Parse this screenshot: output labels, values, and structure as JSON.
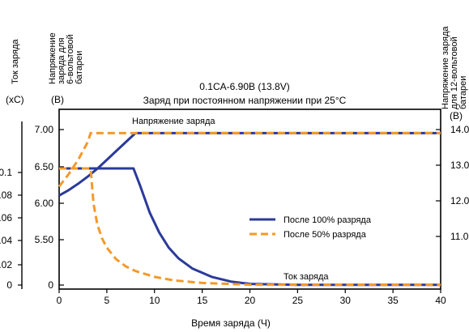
{
  "chart_data": {
    "type": "line",
    "title": "0.1CA-6.90В (13.8V)",
    "subtitle": "Заряд при постоянном напряжении при 25°C",
    "xlabel": "Время заряда (Ч)",
    "x_ticks": [
      "0",
      "5",
      "10",
      "15",
      "20",
      "25",
      "30",
      "35",
      "40"
    ],
    "xlim": [
      0,
      40
    ],
    "axes": {
      "current": {
        "label": "Ток заряда",
        "unit": "(xC)",
        "ticks": [
          "0",
          "0.02",
          "0.04",
          "0.06",
          "0.08",
          "0.1"
        ],
        "ylim": [
          0,
          0.1
        ]
      },
      "voltage_6v": {
        "label": "Напряжение заряда для 6-вольтовой батареи",
        "unit": "(В)",
        "ticks": [
          "0",
          "5.50",
          "6.00",
          "6.50",
          "7.00"
        ]
      },
      "voltage_12v": {
        "label": "Напряжение заряда для 12-вольтовой батареи",
        "unit": "(В)",
        "ticks": [
          "11.0",
          "12.0",
          "13.0",
          "14.0"
        ]
      }
    },
    "annotations": {
      "voltage": "Напряжение заряда",
      "current": "Ток заряда"
    },
    "legend_position": "right-middle",
    "series": [
      {
        "name": "После 100% разряда",
        "color": "#2b3a9a",
        "style": "solid",
        "voltage_12v": {
          "x": [
            0,
            1,
            2,
            3,
            4,
            5,
            6,
            7,
            8,
            40
          ],
          "y": [
            12.15,
            12.3,
            12.48,
            12.68,
            12.9,
            13.15,
            13.4,
            13.65,
            13.9,
            13.9
          ]
        },
        "current_xC": {
          "x": [
            0,
            7.8,
            8.5,
            9.5,
            10.5,
            11.5,
            12.5,
            14,
            16,
            18,
            20,
            25,
            40
          ],
          "y": [
            0.1,
            0.1,
            0.085,
            0.062,
            0.045,
            0.032,
            0.023,
            0.014,
            0.007,
            0.003,
            0.001,
            0.0002,
            0.0002
          ]
        }
      },
      {
        "name": "После 50% разряда",
        "color": "#f39a2a",
        "style": "dashed",
        "voltage_12v": {
          "x": [
            0,
            1,
            2,
            3,
            3.3,
            40
          ],
          "y": [
            12.4,
            12.75,
            13.15,
            13.65,
            13.9,
            13.9
          ]
        },
        "current_xC": {
          "x": [
            0,
            3.3,
            3.6,
            4,
            4.5,
            5,
            6,
            7,
            8,
            10,
            12,
            15,
            20,
            40
          ],
          "y": [
            0.1,
            0.1,
            0.07,
            0.052,
            0.04,
            0.032,
            0.022,
            0.016,
            0.012,
            0.007,
            0.004,
            0.0018,
            0.0003,
            0.0002
          ]
        }
      }
    ]
  }
}
